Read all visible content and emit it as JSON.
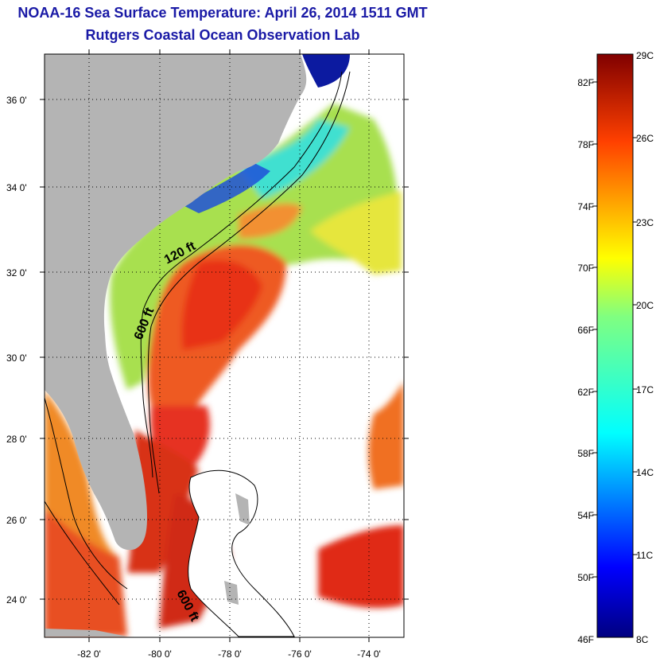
{
  "header": {
    "title": "NOAA-16 Sea Surface Temperature:  April 26, 2014 1511 GMT",
    "subtitle": "Rutgers Coastal Ocean Observation Lab"
  },
  "map": {
    "lat_labels": [
      "36 0'",
      "34 0'",
      "32 0'",
      "30 0'",
      "28 0'",
      "26 0'",
      "24 0'"
    ],
    "lon_labels": [
      "-82 0'",
      "-80 0'",
      "-78 0'",
      "-76 0'",
      "-74 0'"
    ],
    "contours": {
      "shelf_120": "120 ft",
      "shelf_600": "600 ft",
      "bahamas_600": "600 ft"
    },
    "colors": {
      "land": "#b4b4b4",
      "cloud_or_missing": "#ffffff",
      "gulf_stream": "#e8281a",
      "shelf_water": "#9ee35a",
      "cold_inshore": "#1030c8"
    }
  },
  "colorbar": {
    "fahrenheit_labels": [
      "82F",
      "78F",
      "74F",
      "70F",
      "66F",
      "62F",
      "58F",
      "54F",
      "50F",
      "46F"
    ],
    "celsius_labels": [
      "29C",
      "26C",
      "23C",
      "20C",
      "17C",
      "14C",
      "11C",
      "8C"
    ],
    "range_c": [
      8,
      29
    ],
    "range_f": [
      46,
      84
    ],
    "colormap": "jet"
  }
}
